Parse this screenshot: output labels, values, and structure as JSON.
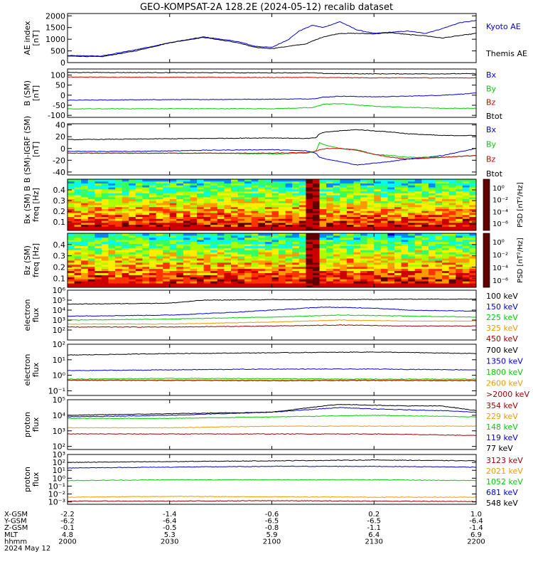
{
  "title": "GEO-KOMPSAT-2A 128.2E (2024-05-12) recalib dataset",
  "colors": {
    "black": "#000000",
    "blue": "#0000dd",
    "green": "#00cc00",
    "red": "#cc0000",
    "orange": "#ee9900",
    "darkred": "#990000"
  },
  "colorbar_colors": [
    "#600000",
    "#cc0000",
    "#ff3300",
    "#ff9900",
    "#ffee00",
    "#aaff00",
    "#33ff66",
    "#00ffee",
    "#0088ff",
    "#0000cc",
    "#220066",
    "#000000"
  ],
  "chart_data": {
    "type": "line",
    "x_range": [
      0,
      120
    ],
    "x_unit": "minutes from 2000 UT",
    "x_ticks": [
      0,
      30,
      60,
      90,
      120
    ],
    "ephemeris": {
      "labels": [
        "X-GSM",
        "Y-GSM",
        "Z-GSM",
        "MLT",
        "hhmm",
        "2024 May 12"
      ],
      "rows": [
        [
          "-2.2",
          "-1.4",
          "-0.6",
          "0.2",
          "1.0"
        ],
        [
          "-6.2",
          "-6.4",
          "-6.5",
          "-6.5",
          "-6.4"
        ],
        [
          "-0.1",
          "-0.5",
          "-0.8",
          "-1.1",
          "-1.4"
        ],
        [
          "4.8",
          "5.3",
          "5.9",
          "6.4",
          "6.9"
        ],
        [
          "2000",
          "2030",
          "2100",
          "2130",
          "2200"
        ]
      ]
    },
    "panels": [
      {
        "id": "ae",
        "ylabel": "AE index\n[nT]",
        "scale": "linear",
        "ylim": [
          0,
          2100
        ],
        "ticks": [
          0,
          500,
          1000,
          1500,
          2000
        ],
        "tick_labels": [
          "0",
          "500",
          "1000",
          "1500",
          "2000"
        ],
        "series": [
          {
            "name": "Kyoto AE",
            "color": "#0000dd",
            "x": [
              0,
              10,
              20,
              30,
              40,
              50,
              55,
              60,
              65,
              68,
              72,
              75,
              80,
              85,
              90,
              95,
              100,
              105,
              110,
              115,
              120
            ],
            "y": [
              300,
              280,
              550,
              850,
              1100,
              900,
              700,
              650,
              1000,
              1350,
              1600,
              1500,
              1750,
              1400,
              1250,
              1300,
              1350,
              1250,
              1450,
              1700,
              1800
            ]
          },
          {
            "name": "Themis AE",
            "color": "#000000",
            "x": [
              0,
              10,
              20,
              30,
              40,
              50,
              55,
              60,
              65,
              70,
              75,
              80,
              85,
              90,
              95,
              100,
              105,
              110,
              115,
              120
            ],
            "y": [
              280,
              250,
              500,
              850,
              1080,
              850,
              650,
              600,
              700,
              800,
              1100,
              1250,
              1250,
              1230,
              1280,
              1200,
              1150,
              1050,
              1150,
              1250
            ]
          }
        ]
      },
      {
        "id": "bsm",
        "ylabel": "B (SM)\n[nT]",
        "scale": "linear",
        "ylim": [
          -110,
          130
        ],
        "ticks": [
          -100,
          -50,
          0,
          50,
          100
        ],
        "tick_labels": [
          "-100",
          "-50",
          "0",
          "50",
          "100"
        ],
        "series": [
          {
            "name": "Bx",
            "color": "#0000dd",
            "x": [
              0,
              30,
              60,
              72,
              75,
              80,
              90,
              100,
              110,
              120
            ],
            "y": [
              -25,
              -22,
              -20,
              -18,
              -10,
              -5,
              -8,
              -5,
              0,
              10
            ]
          },
          {
            "name": "By",
            "color": "#00cc00",
            "x": [
              0,
              30,
              60,
              72,
              75,
              80,
              90,
              100,
              110,
              120
            ],
            "y": [
              -68,
              -67,
              -67,
              -62,
              -45,
              -42,
              -55,
              -60,
              -65,
              -65
            ]
          },
          {
            "name": "Bz",
            "color": "#cc0000",
            "x": [
              0,
              30,
              60,
              72,
              75,
              80,
              90,
              100,
              110,
              120
            ],
            "y": [
              90,
              89,
              88,
              88,
              87,
              87,
              86,
              86,
              86,
              86
            ]
          },
          {
            "name": "Btot",
            "color": "#000000",
            "x": [
              0,
              30,
              60,
              72,
              75,
              80,
              90,
              100,
              110,
              120
            ],
            "y": [
              113,
              112,
              111,
              111,
              108,
              107,
              106,
              106,
              106,
              107
            ]
          }
        ]
      },
      {
        "id": "bres",
        "ylabel": "B (SM)-IGRF (SM)\n[nT]",
        "scale": "linear",
        "ylim": [
          -45,
          42
        ],
        "ticks": [
          -40,
          -20,
          0,
          20,
          40
        ],
        "tick_labels": [
          "-40",
          "-20",
          "0",
          "20",
          "40"
        ],
        "series": [
          {
            "name": "Bx",
            "color": "#0000dd",
            "x": [
              0,
              20,
              40,
              60,
              70,
              73,
              74,
              76,
              80,
              85,
              90,
              95,
              100,
              110,
              120
            ],
            "y": [
              -5,
              -5,
              -3,
              -2,
              -4,
              -8,
              -15,
              -18,
              -22,
              -28,
              -25,
              -22,
              -18,
              -12,
              0
            ]
          },
          {
            "name": "By",
            "color": "#00cc00",
            "x": [
              0,
              20,
              40,
              60,
              70,
              73,
              74,
              76,
              80,
              85,
              90,
              95,
              100,
              110,
              120
            ],
            "y": [
              -8,
              -8,
              -8,
              -9,
              -8,
              -5,
              10,
              5,
              0,
              -2,
              -10,
              -12,
              -15,
              -15,
              -12
            ]
          },
          {
            "name": "Bz",
            "color": "#cc0000",
            "x": [
              0,
              20,
              40,
              60,
              70,
              73,
              74,
              76,
              80,
              85,
              90,
              95,
              100,
              110,
              120
            ],
            "y": [
              -8,
              -8,
              -8,
              -8,
              -7,
              -5,
              -2,
              0,
              0,
              -3,
              -10,
              -15,
              -18,
              -15,
              -12
            ]
          },
          {
            "name": "Btot",
            "color": "#000000",
            "x": [
              0,
              20,
              40,
              60,
              70,
              73,
              74,
              76,
              80,
              85,
              90,
              95,
              100,
              110,
              120
            ],
            "y": [
              15,
              16,
              17,
              18,
              17,
              18,
              25,
              28,
              30,
              32,
              30,
              28,
              25,
              22,
              22
            ]
          }
        ]
      },
      {
        "id": "bx_spec",
        "type": "heatmap",
        "ylabel": "Bx (SM) B\nfreq [Hz]",
        "ylim": [
          0.02,
          0.5
        ],
        "ticks": [
          0.1,
          0.2,
          0.3,
          0.4
        ],
        "tick_labels": [
          "0.1",
          "0.2",
          "0.3",
          "0.4"
        ],
        "colorbar_label": "PSD [nT²/Hz]",
        "colorbar_ticks": [
          "10⁰",
          "10⁻²",
          "10⁻⁴",
          "10⁻⁶"
        ],
        "burst_x": [
          71,
          74
        ]
      },
      {
        "id": "bz_spec",
        "type": "heatmap",
        "ylabel": "Bz (SM)\nfreq [Hz]",
        "ylim": [
          0.02,
          0.5
        ],
        "ticks": [
          0.1,
          0.2,
          0.3,
          0.4
        ],
        "tick_labels": [
          "0.1",
          "0.2",
          "0.3",
          "0.4"
        ],
        "colorbar_label": "PSD [nT²/Hz]",
        "colorbar_ticks": [
          "10⁰",
          "10⁻²",
          "10⁻⁴",
          "10⁻⁶"
        ],
        "burst_x": [
          71,
          74
        ]
      },
      {
        "id": "e_low",
        "ylabel": "electron\nflux",
        "scale": "log",
        "ylim": [
          1,
          6
        ],
        "ticks": [
          2,
          3,
          4,
          5,
          6
        ],
        "tick_labels": [
          "10²",
          "10³",
          "10⁴",
          "10⁵",
          "10⁶"
        ],
        "series": [
          {
            "name": "100 keV",
            "color": "#000000",
            "x": [
              0,
              30,
              40,
              60,
              80,
              100,
              120
            ],
            "y": [
              4.6,
              4.7,
              5.0,
              5.05,
              5.05,
              5.1,
              5.1
            ]
          },
          {
            "name": "150 keV",
            "color": "#0000dd",
            "x": [
              0,
              30,
              50,
              60,
              75,
              90,
              100,
              120
            ],
            "y": [
              3.4,
              3.5,
              3.8,
              4.0,
              4.3,
              4.2,
              4.0,
              3.9
            ]
          },
          {
            "name": "225 keV",
            "color": "#00cc00",
            "x": [
              0,
              30,
              60,
              80,
              100,
              120
            ],
            "y": [
              3.0,
              3.1,
              3.3,
              3.5,
              3.4,
              3.3
            ]
          },
          {
            "name": "325 keV",
            "color": "#ee9900",
            "x": [
              0,
              30,
              60,
              80,
              100,
              120
            ],
            "y": [
              2.6,
              2.6,
              2.8,
              3.0,
              2.9,
              2.9
            ]
          },
          {
            "name": "450 keV",
            "color": "#990000",
            "x": [
              0,
              30,
              60,
              80,
              100,
              120
            ],
            "y": [
              2.3,
              2.3,
              2.4,
              2.5,
              2.4,
              2.4
            ]
          }
        ]
      },
      {
        "id": "e_high",
        "ylabel": "electron\nflux",
        "scale": "log",
        "ylim": [
          -1.3,
          2
        ],
        "ticks": [
          -1,
          0,
          1,
          2
        ],
        "tick_labels": [
          "10⁻¹",
          "10⁰",
          "10¹",
          "10²"
        ],
        "series": [
          {
            "name": "700 keV",
            "color": "#000000",
            "x": [
              0,
              30,
              60,
              90,
              120
            ],
            "y": [
              1.3,
              1.4,
              1.45,
              1.5,
              1.4
            ]
          },
          {
            "name": "1350 keV",
            "color": "#0000dd",
            "x": [
              0,
              30,
              60,
              90,
              120
            ],
            "y": [
              0.3,
              0.35,
              0.4,
              0.4,
              0.35
            ]
          },
          {
            "name": "1800 keV",
            "color": "#00cc00",
            "x": [
              0,
              30,
              60,
              90,
              120
            ],
            "y": [
              -0.25,
              -0.2,
              -0.22,
              -0.25,
              -0.25
            ]
          },
          {
            "name": "2600 keV",
            "color": "#ee9900",
            "x": [
              0,
              30,
              60,
              90,
              120
            ],
            "y": [
              -0.3,
              -0.3,
              -0.32,
              -0.3,
              -0.32
            ]
          },
          {
            "name": ">2000 keV",
            "color": "#990000",
            "x": [
              0,
              30,
              60,
              90,
              120
            ],
            "y": [
              -0.32,
              -0.33,
              -0.35,
              -0.33,
              -0.35
            ]
          }
        ]
      },
      {
        "id": "p_low",
        "ylabel": "proton\nflux",
        "scale": "log",
        "ylim": [
          1.8,
          5
        ],
        "ticks": [
          2,
          3,
          4,
          5
        ],
        "tick_labels": [
          "10²",
          "10³",
          "10⁴",
          "10⁵"
        ],
        "series": [
          {
            "name": "354 keV",
            "color": "#990000",
            "x": [
              0,
              30,
              60,
              90,
              120
            ],
            "y": [
              2.8,
              2.8,
              2.8,
              2.8,
              2.7
            ]
          },
          {
            "name": "229 keV",
            "color": "#ee9900",
            "x": [
              0,
              30,
              60,
              90,
              120
            ],
            "y": [
              3.2,
              3.2,
              3.3,
              3.3,
              3.3
            ]
          },
          {
            "name": "148 keV",
            "color": "#00cc00",
            "x": [
              0,
              30,
              60,
              90,
              120
            ],
            "y": [
              3.8,
              3.8,
              3.9,
              4.0,
              3.9
            ]
          },
          {
            "name": "119 keV",
            "color": "#0000dd",
            "x": [
              0,
              30,
              60,
              80,
              90,
              110,
              120
            ],
            "y": [
              3.9,
              4.0,
              4.2,
              4.5,
              4.4,
              4.3,
              4.2
            ]
          },
          {
            "name": "77 keV",
            "color": "#000000",
            "x": [
              0,
              30,
              60,
              75,
              80,
              90,
              100,
              110,
              120
            ],
            "y": [
              4.0,
              4.1,
              4.2,
              4.6,
              4.7,
              4.65,
              4.6,
              4.6,
              4.3
            ]
          }
        ]
      },
      {
        "id": "p_high",
        "ylabel": "proton\nflux",
        "scale": "log",
        "ylim": [
          -3.3,
          3
        ],
        "ticks": [
          -3,
          -2,
          -1,
          0,
          1,
          2,
          3
        ],
        "tick_labels": [
          "10⁻³",
          "10⁻²",
          "10⁻¹",
          "10⁰",
          "10¹",
          "10²",
          "10³"
        ],
        "series": [
          {
            "name": "3123 keV",
            "color": "#990000",
            "x": [
              0,
              30,
              60,
              90,
              120
            ],
            "y": [
              -2.9,
              -2.9,
              -2.85,
              -2.9,
              -2.95
            ]
          },
          {
            "name": "2021 keV",
            "color": "#ee9900",
            "x": [
              0,
              30,
              60,
              90,
              120
            ],
            "y": [
              -2.4,
              -2.3,
              -2.35,
              -2.4,
              -2.4
            ]
          },
          {
            "name": "1052 keV",
            "color": "#00cc00",
            "x": [
              0,
              30,
              60,
              90,
              120
            ],
            "y": [
              -0.3,
              -0.2,
              -0.2,
              -0.2,
              -0.3
            ]
          },
          {
            "name": "681 keV",
            "color": "#0000dd",
            "x": [
              0,
              30,
              60,
              90,
              120
            ],
            "y": [
              1.3,
              1.4,
              1.5,
              1.5,
              1.4
            ]
          },
          {
            "name": "548 keV",
            "color": "#000000",
            "x": [
              0,
              30,
              60,
              90,
              120
            ],
            "y": [
              2.0,
              2.1,
              2.2,
              2.3,
              2.2
            ]
          }
        ]
      }
    ]
  }
}
